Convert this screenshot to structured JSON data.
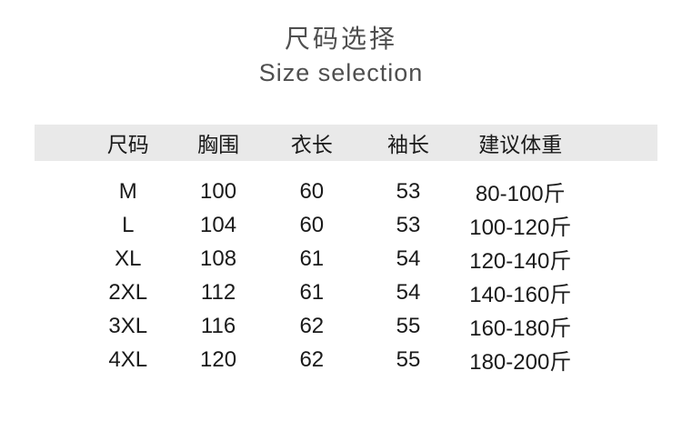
{
  "title": {
    "zh": "尺码选择",
    "en": "Size selection",
    "color": "#4f4f4f"
  },
  "colors": {
    "page_background": "#ffffff",
    "header_band": "#e9e9e9",
    "table_text": "#1a1a1a"
  },
  "chart_data": {
    "type": "table",
    "title": "尺码选择 / Size selection",
    "columns": [
      "尺码",
      "胸围",
      "衣长",
      "袖长",
      "建议体重"
    ],
    "rows": [
      [
        "M",
        "100",
        "60",
        "53",
        "80-100斤"
      ],
      [
        "L",
        "104",
        "60",
        "53",
        "100-120斤"
      ],
      [
        "XL",
        "108",
        "61",
        "54",
        "120-140斤"
      ],
      [
        "2XL",
        "112",
        "61",
        "54",
        "140-160斤"
      ],
      [
        "3XL",
        "116",
        "62",
        "55",
        "160-180斤"
      ],
      [
        "4XL",
        "120",
        "62",
        "55",
        "180-200斤"
      ]
    ]
  }
}
